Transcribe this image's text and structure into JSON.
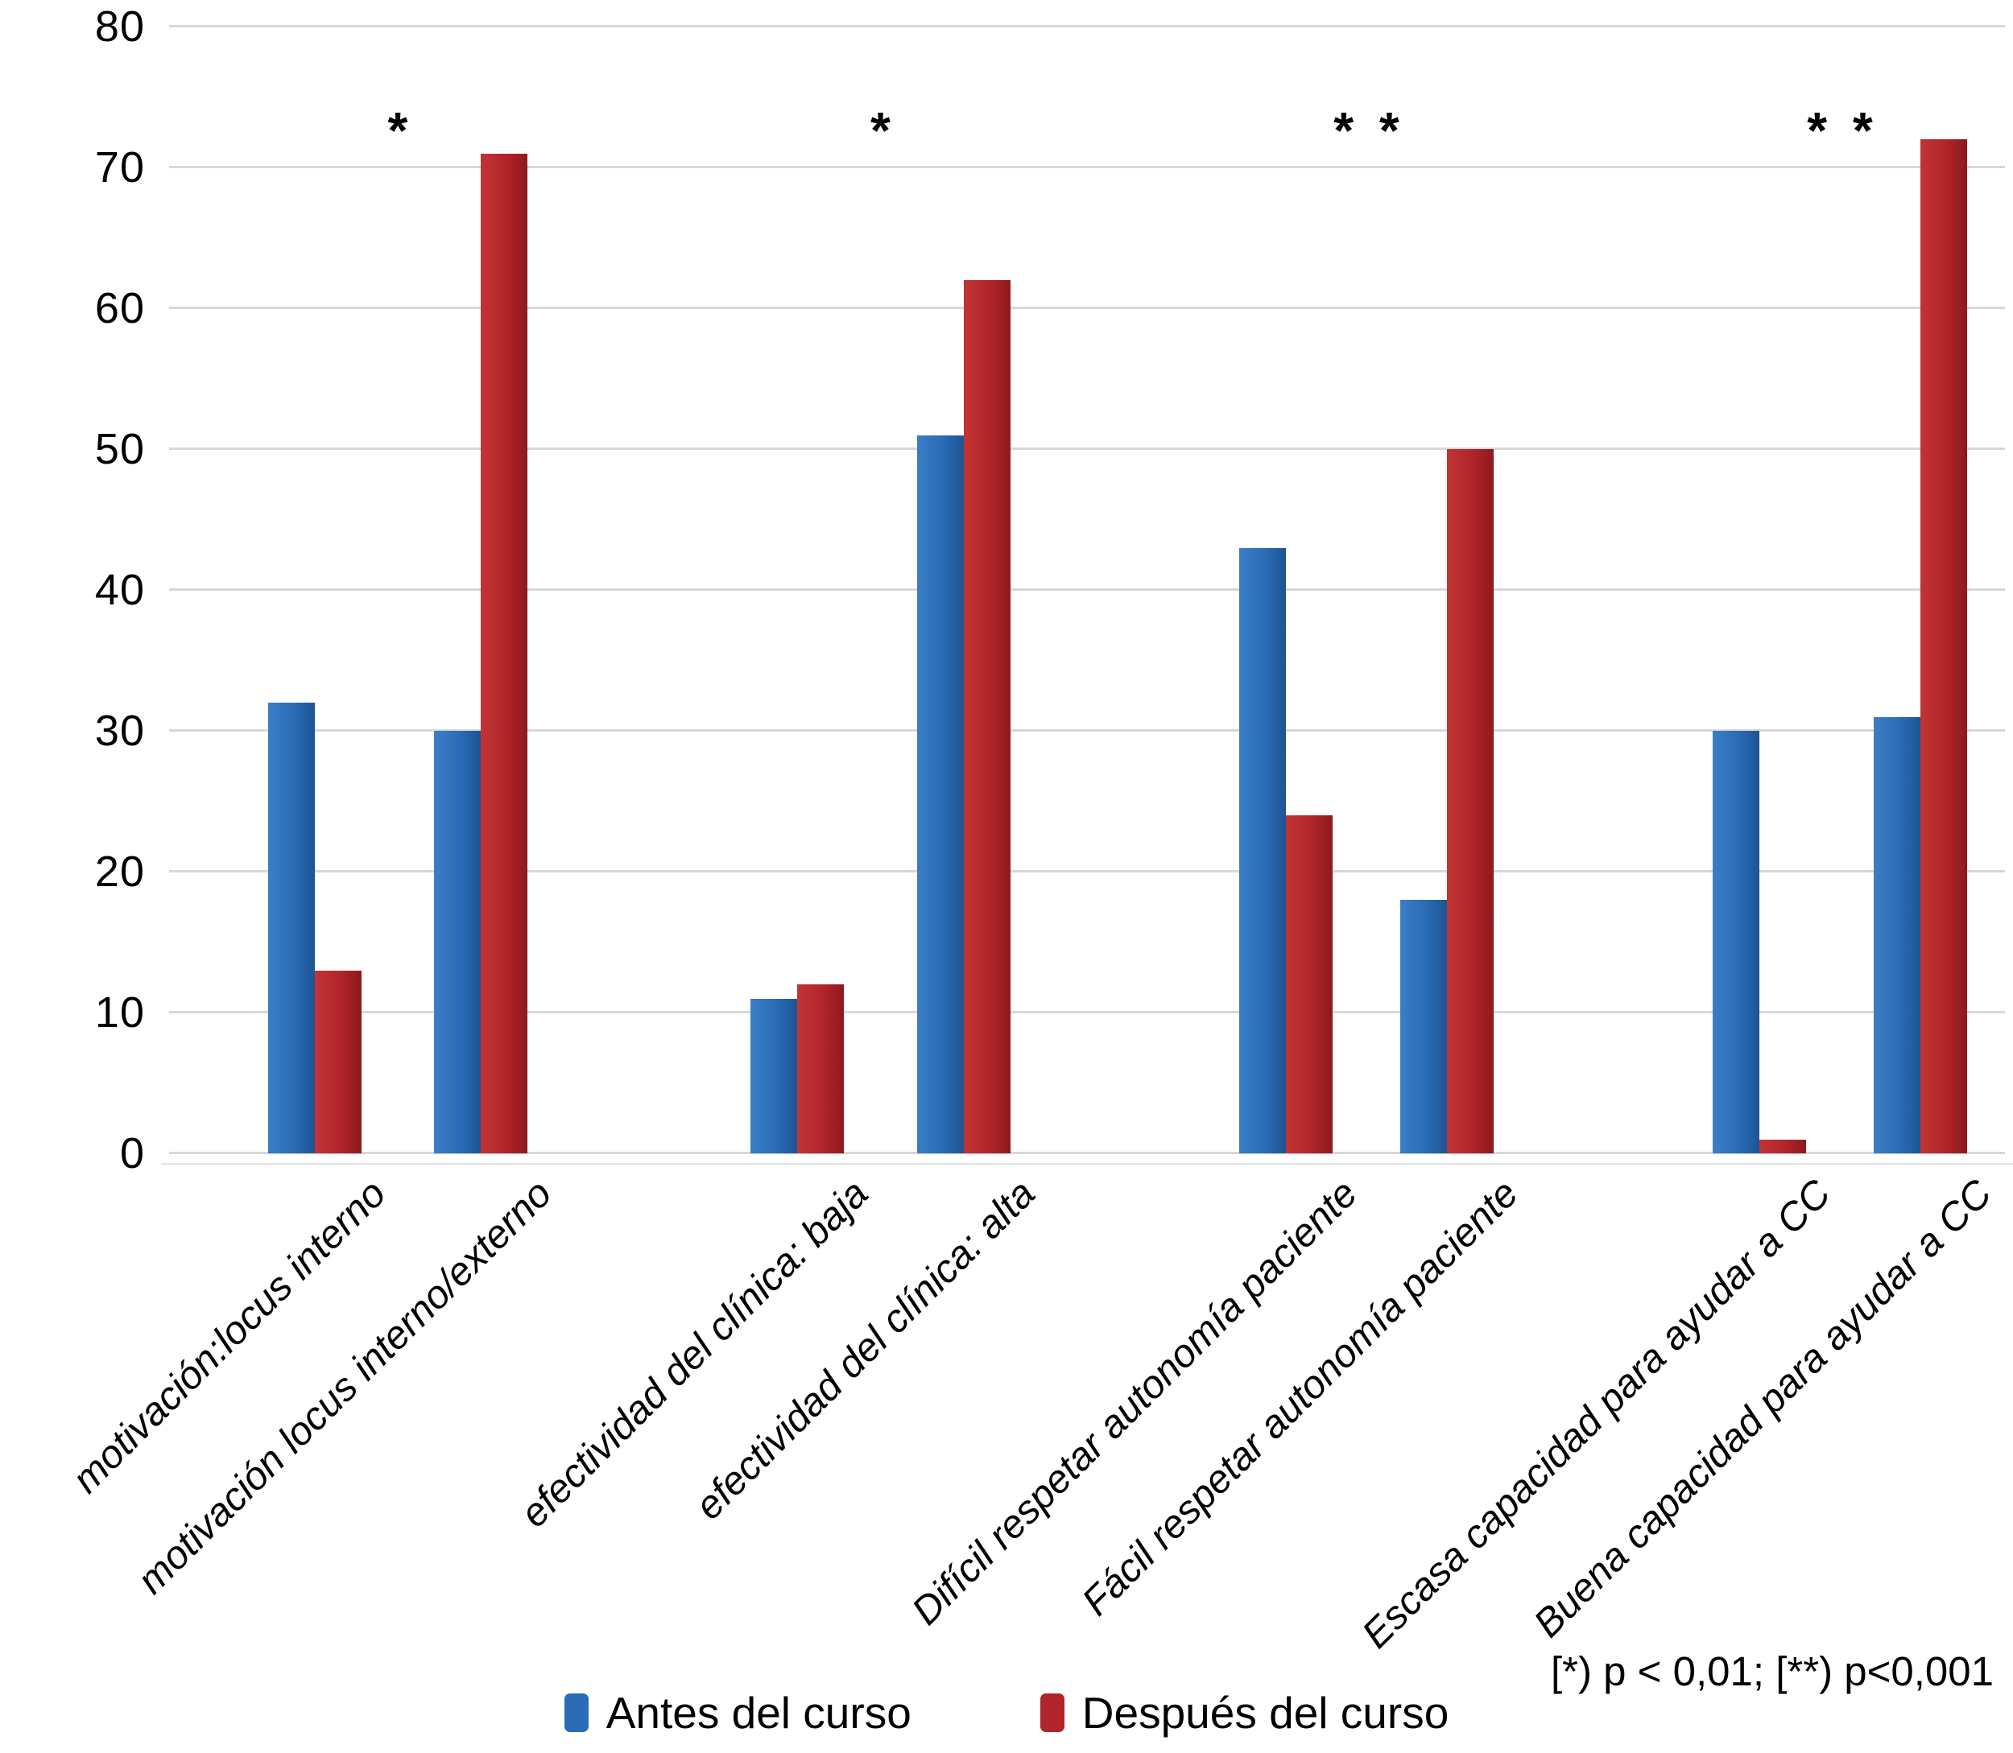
{
  "chart_data": {
    "type": "bar",
    "title": "",
    "categories": [
      "motivación:locus interno",
      "motivación locus interno/externo",
      "efectividad del clínica: baja",
      "efectividad del clínica: alta",
      "Difícil respetar autonomía paciente",
      "Fácil respetar autonomía paciente",
      "Escasa capacidad para ayudar a CC",
      "Buena capacidad para ayudar a CC"
    ],
    "series": [
      {
        "name": "Antes del curso",
        "color": "#2a6cb5",
        "values": [
          32,
          30,
          11,
          51,
          43,
          18,
          30,
          31
        ]
      },
      {
        "name": "Después del curso",
        "color": "#b1252a",
        "values": [
          13,
          71,
          12,
          62,
          24,
          50,
          1,
          72
        ]
      }
    ],
    "ylim": [
      0,
      80
    ],
    "yticks": [
      0,
      10,
      20,
      30,
      40,
      50,
      60,
      70,
      80
    ],
    "xlabel": "",
    "ylabel": "",
    "grid": true,
    "legend_position": "bottom",
    "significance_markers": [
      {
        "text": "*",
        "between_categories": [
          0,
          1
        ]
      },
      {
        "text": "*",
        "between_categories": [
          2,
          3
        ]
      },
      {
        "text": "* *",
        "between_categories": [
          4,
          5
        ]
      },
      {
        "text": "* *",
        "between_categories": [
          6,
          7
        ]
      }
    ],
    "footnote": "[*) p < 0,01; [**) p<0,001"
  }
}
